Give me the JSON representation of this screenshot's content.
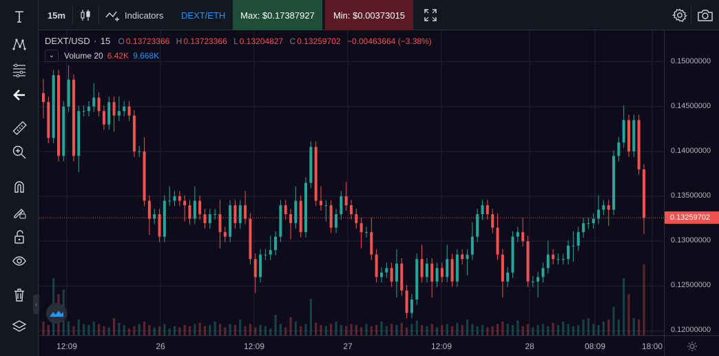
{
  "colors": {
    "up": "#26a69a",
    "down": "#ef5350",
    "background": "#0e0c1b",
    "accent": "#2196f3",
    "max_bg": "#1e4d3a",
    "min_bg": "#5c1a26"
  },
  "left_toolbar": {
    "tools": [
      "text-icon",
      "pattern-icon",
      "fib-icon",
      "back-arrow-icon",
      "ruler-icon",
      "zoom-in-icon",
      "magnet-icon",
      "lock-pencil-icon",
      "unlock-icon",
      "eye-icon",
      "trash-icon",
      "layers-icon"
    ]
  },
  "top_toolbar": {
    "interval": "15m",
    "indicators_label": "Indicators",
    "pair_label": "DEXT/ETH",
    "max_label": "Max: $0.17387927",
    "min_label": "Min: $0.00373015"
  },
  "legend": {
    "symbol": "DEXT/USD",
    "sep": "·",
    "interval": "15",
    "o_key": "O",
    "o_val": "0.13723366",
    "h_key": "H",
    "h_val": "0.13723366",
    "l_key": "L",
    "l_val": "0.13204827",
    "c_key": "C",
    "c_val": "0.13259702",
    "change": "−0.00463664 (−3.38%)",
    "volume_label": "Volume 20",
    "volume_val1": "6.42K",
    "volume_val2": "9.668K"
  },
  "price_axis": {
    "labels": [
      "0.15000000",
      "0.14500000",
      "0.14000000",
      "0.13500000",
      "0.13000000",
      "0.12500000",
      "0.12000000"
    ],
    "current_price": "0.13259702"
  },
  "time_axis": {
    "labels": [
      "12:09",
      "26",
      "12:09",
      "27",
      "12:09",
      "28",
      "08:09",
      "18:00"
    ]
  },
  "chart_data": {
    "type": "candlestick",
    "symbol": "DEXT/USD",
    "interval": "15",
    "ylim": [
      0.1195,
      0.1535
    ],
    "y_ticks": [
      0.15,
      0.145,
      0.14,
      0.135,
      0.13,
      0.125,
      0.12
    ],
    "x_ticks": [
      "12:09",
      "26",
      "12:09",
      "27",
      "12:09",
      "28",
      "08:09",
      "18:00"
    ],
    "current_price": 0.13259702,
    "grid": true,
    "close_series": [
      0.1455,
      0.1415,
      0.1485,
      0.1395,
      0.145,
      0.148,
      0.1395,
      0.1445,
      0.1445,
      0.145,
      0.146,
      0.1445,
      0.143,
      0.1455,
      0.144,
      0.1445,
      0.145,
      0.144,
      0.14,
      0.14,
      0.1345,
      0.1325,
      0.133,
      0.1305,
      0.1345,
      0.1345,
      0.135,
      0.1345,
      0.134,
      0.1325,
      0.1345,
      0.133,
      0.132,
      0.133,
      0.133,
      0.131,
      0.1305,
      0.134,
      0.132,
      0.134,
      0.1325,
      0.128,
      0.126,
      0.1285,
      0.1285,
      0.129,
      0.1305,
      0.134,
      0.133,
      0.132,
      0.1345,
      0.131,
      0.1365,
      0.1405,
      0.1345,
      0.134,
      0.134,
      0.1315,
      0.133,
      0.135,
      0.134,
      0.133,
      0.132,
      0.131,
      0.131,
      0.1285,
      0.126,
      0.1265,
      0.127,
      0.1255,
      0.1275,
      0.1245,
      0.122,
      0.1235,
      0.128,
      0.126,
      0.1275,
      0.1255,
      0.127,
      0.126,
      0.128,
      0.1255,
      0.1285,
      0.128,
      0.1285,
      0.1305,
      0.133,
      0.134,
      0.133,
      0.1315,
      0.1285,
      0.1255,
      0.1265,
      0.1305,
      0.131,
      0.13,
      0.1255,
      0.1255,
      0.126,
      0.127,
      0.1285,
      0.128,
      0.128,
      0.128,
      0.1295,
      0.1295,
      0.131,
      0.132,
      0.132,
      0.1325,
      0.1335,
      0.134,
      0.1335,
      0.1395,
      0.141,
      0.1435,
      0.14,
      0.1435,
      0.138,
      0.1326
    ],
    "volume_series": [
      1.2,
      0.9,
      5.0,
      3.6,
      4.0,
      1.2,
      0.8,
      1.4,
      1.0,
      0.9,
      1.2,
      1.0,
      0.8,
      0.7,
      1.5,
      1.1,
      0.9,
      0.6,
      0.8,
      1.0,
      1.2,
      0.9,
      0.7,
      0.8,
      1.0,
      0.6,
      0.8,
      0.7,
      0.9,
      0.8,
      1.0,
      1.1,
      0.8,
      0.9,
      1.2,
      1.0,
      0.7,
      1.0,
      0.9,
      1.4,
      0.8,
      1.0,
      0.7,
      0.9,
      0.8,
      0.6,
      1.8,
      1.0,
      0.7,
      1.6,
      1.2,
      0.8,
      1.0,
      3.2,
      1.1,
      0.9,
      0.8,
      1.0,
      1.2,
      0.9,
      0.8,
      1.0,
      0.9,
      0.7,
      1.0,
      0.8,
      0.9,
      1.2,
      0.8,
      1.0,
      0.9,
      1.1,
      0.7,
      1.0,
      1.3,
      0.9,
      0.8,
      1.0,
      0.7,
      0.9,
      1.0,
      0.8,
      1.1,
      0.9,
      1.4,
      1.0,
      0.8,
      0.9,
      0.7,
      0.8,
      1.0,
      1.2,
      1.0,
      0.9,
      1.3,
      0.8,
      1.0,
      0.7,
      0.9,
      1.0,
      0.8,
      1.1,
      0.9,
      1.2,
      1.0,
      0.8,
      0.9,
      1.4,
      1.5,
      1.0,
      0.9,
      1.2,
      1.4,
      2.5,
      1.4,
      5.0,
      3.6,
      1.5,
      1.4,
      6.2
    ]
  }
}
